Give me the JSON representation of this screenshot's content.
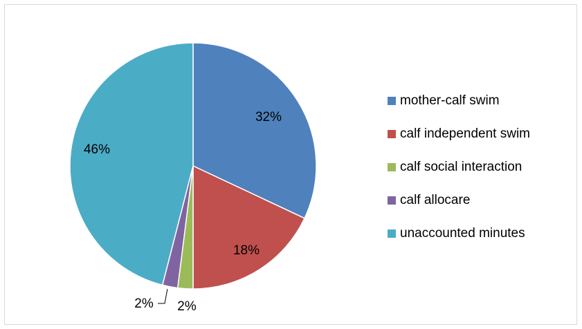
{
  "chart_data": {
    "type": "pie",
    "slices": [
      {
        "label": "mother-calf swim",
        "value": 32,
        "value_label": "32%",
        "color": "#4F81BD"
      },
      {
        "label": "calf independent swim",
        "value": 18,
        "value_label": "18%",
        "color": "#C0504D"
      },
      {
        "label": "calf social interaction",
        "value": 2,
        "value_label": "2%",
        "color": "#9BBB59"
      },
      {
        "label": "calf allocare",
        "value": 2,
        "value_label": "2%",
        "color": "#8064A2"
      },
      {
        "label": "unaccounted minutes",
        "value": 46,
        "value_label": "46%",
        "color": "#4BACC6"
      }
    ],
    "legend_position": "right"
  }
}
